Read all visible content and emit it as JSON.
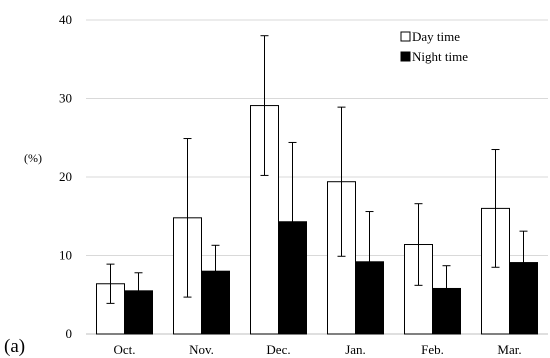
{
  "chart_data": {
    "type": "bar",
    "panel_label": "(a)",
    "ylabel": "(%)",
    "ylim": [
      0,
      40
    ],
    "yticks": [
      0,
      10,
      20,
      30,
      40
    ],
    "grid": true,
    "legend_position": "top-right",
    "categories": [
      "Oct.",
      "Nov.",
      "Dec.",
      "Jan.",
      "Feb.",
      "Mar."
    ],
    "series": [
      {
        "name": "Day time",
        "fill": "#ffffff",
        "values": [
          6.4,
          14.8,
          29.1,
          19.4,
          11.4,
          16.0
        ],
        "error": [
          2.5,
          10.1,
          8.9,
          9.5,
          5.2,
          7.5
        ]
      },
      {
        "name": "Night time",
        "fill": "#000000",
        "values": [
          5.5,
          8.0,
          14.3,
          9.2,
          5.8,
          9.1
        ],
        "error": [
          2.3,
          3.3,
          10.1,
          6.4,
          2.9,
          4.0
        ]
      }
    ]
  }
}
